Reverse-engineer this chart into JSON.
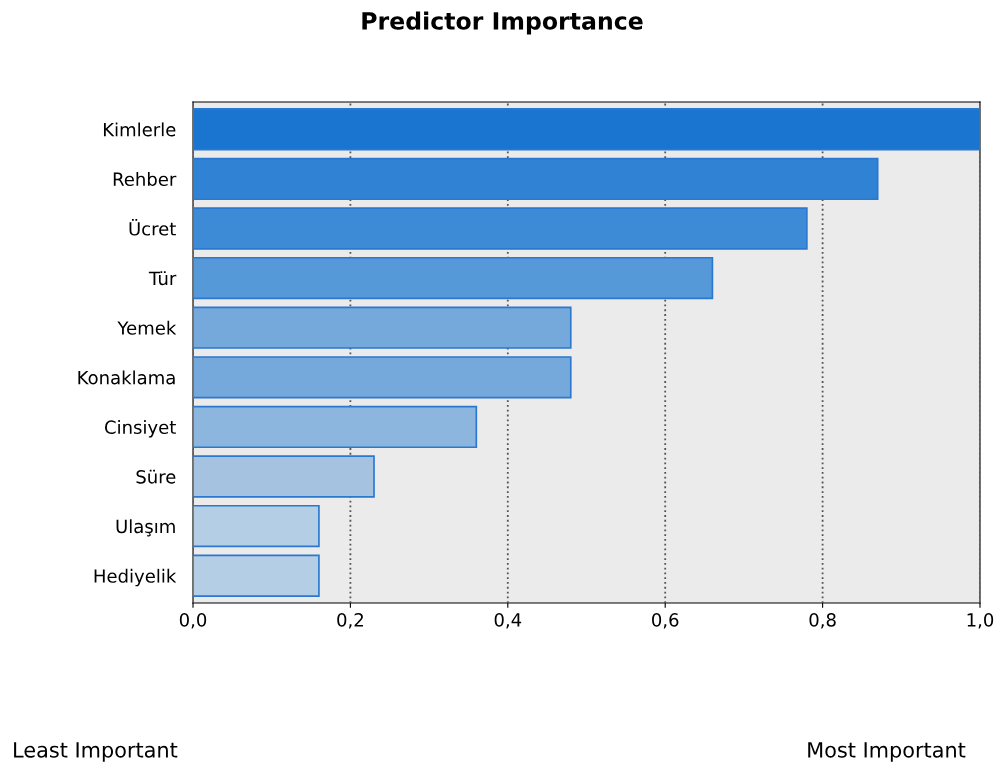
{
  "chart_data": {
    "type": "bar",
    "orientation": "horizontal",
    "title": "Predictor Importance",
    "categories": [
      "Kimlerle",
      "Rehber",
      "Ücret",
      "Tür",
      "Yemek",
      "Konaklama",
      "Cinsiyet",
      "Süre",
      "Ulaşım",
      "Hediyelik"
    ],
    "values": [
      1.0,
      0.87,
      0.78,
      0.66,
      0.48,
      0.48,
      0.36,
      0.23,
      0.16,
      0.16
    ],
    "colors": [
      "#1a75d0",
      "#2f82d4",
      "#3d8bd6",
      "#5599d9",
      "#75a9dc",
      "#75a9dc",
      "#8cb6de",
      "#a5c3e1",
      "#b3cee5",
      "#b3cee5"
    ],
    "xlim": [
      0,
      1.0
    ],
    "xticks": [
      {
        "value": 0,
        "label": "0,0"
      },
      {
        "value": 0.2,
        "label": "0,2"
      },
      {
        "value": 0.4,
        "label": "0,4"
      },
      {
        "value": 0.6,
        "label": "0,6"
      },
      {
        "value": 0.8,
        "label": "0,8"
      },
      {
        "value": 1.0,
        "label": "1,0"
      }
    ],
    "grid": "x",
    "annotations": [
      "Least Important",
      "Most Important"
    ]
  }
}
